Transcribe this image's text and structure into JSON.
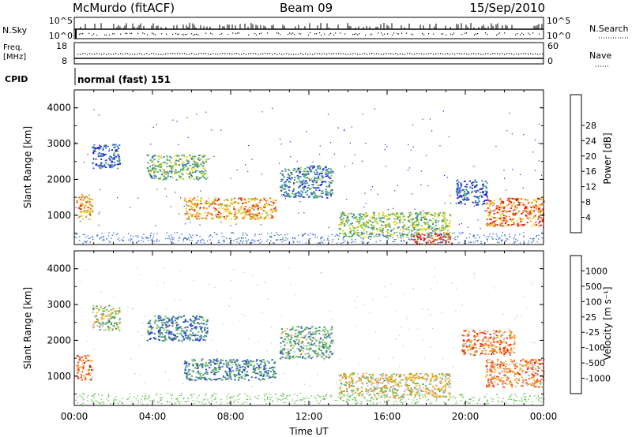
{
  "header": {
    "station": "McMurdo (fitACF)",
    "beam": "Beam 09",
    "date": "15/Sep/2010"
  },
  "params": {
    "nsky_label": "N.Sky",
    "nsky_top": "10^5",
    "nsky_bot": "10^0",
    "nsearch_label": "N.Search",
    "nsearch_top": "10^5",
    "nsearch_bot": "10^0",
    "freq_label_1": "Freq.",
    "freq_label_2": "[MHz]",
    "freq_top": "18",
    "freq_bot": "8",
    "nave_label": "Nave",
    "nave_top": "60",
    "nave_bot": "0",
    "cpid_label": "CPID",
    "cpid_value": "normal (fast) 151"
  },
  "chart_data": [
    {
      "type": "heatmap",
      "variable": "Power",
      "ylabel": "Slant Range [km]",
      "xlabel": "",
      "ylim": [
        180,
        4500
      ],
      "xlim_hours": [
        0,
        24
      ],
      "y_ticks": [
        "1000",
        "2000",
        "3000",
        "4000"
      ],
      "colorbar_label": "Power [dB]",
      "colorbar_ticks": [
        "4",
        "8",
        "12",
        "16",
        "20",
        "24",
        "28"
      ],
      "colorbar_colors": [
        "#1f1fe0",
        "#2f6ad0",
        "#3f8f86",
        "#4cab6a",
        "#9ed13a",
        "#f2d21b",
        "#f59a16",
        "#f2581a",
        "#e01212"
      ],
      "echo_regions": [
        {
          "t0": 0.1,
          "t1": 0.9,
          "r0": 900,
          "r1": 1600,
          "level": 0.7
        },
        {
          "t0": 0.9,
          "t1": 2.3,
          "r0": 2300,
          "r1": 3000,
          "level": 0.15
        },
        {
          "t0": 3.7,
          "t1": 6.8,
          "r0": 2000,
          "r1": 2700,
          "level": 0.4
        },
        {
          "t0": 5.6,
          "t1": 10.3,
          "r0": 900,
          "r1": 1500,
          "level": 0.7
        },
        {
          "t0": 10.5,
          "t1": 13.2,
          "r0": 1500,
          "r1": 2400,
          "level": 0.25
        },
        {
          "t0": 13.5,
          "t1": 19.2,
          "r0": 400,
          "r1": 1100,
          "level": 0.45
        },
        {
          "t0": 17.3,
          "t1": 19.3,
          "r0": 200,
          "r1": 500,
          "level": 0.9
        },
        {
          "t0": 19.5,
          "t1": 21.1,
          "r0": 1300,
          "r1": 2000,
          "level": 0.15
        },
        {
          "t0": 21.0,
          "t1": 24.0,
          "r0": 700,
          "r1": 1500,
          "level": 0.8
        }
      ]
    },
    {
      "type": "heatmap",
      "variable": "Velocity",
      "ylabel": "Slant Range [km]",
      "xlabel": "Time UT",
      "ylim": [
        180,
        4500
      ],
      "xlim_hours": [
        0,
        24
      ],
      "x_ticks": [
        "00:00",
        "04:00",
        "08:00",
        "12:00",
        "16:00",
        "20:00",
        "00:00"
      ],
      "y_ticks": [
        "1000",
        "2000",
        "3000",
        "4000"
      ],
      "colorbar_label": "Velocity [m s⁻¹]",
      "colorbar_ticks": [
        "1000",
        "500",
        "100",
        "25",
        "-25",
        "-100",
        "-500",
        "-1000"
      ],
      "colorbar_colors": [
        "#1f3fd0",
        "#3a6aa8",
        "#3f8f6a",
        "#5fbf4a",
        "#c0c0c0",
        "#f5b020",
        "#f58a1a",
        "#f24e1a",
        "#e01212"
      ],
      "echo_regions": [
        {
          "t0": 0.1,
          "t1": 0.9,
          "r0": 900,
          "r1": 1600,
          "level": 0.75
        },
        {
          "t0": 0.9,
          "t1": 2.3,
          "r0": 2300,
          "r1": 3000,
          "level": 0.45
        },
        {
          "t0": 3.7,
          "t1": 6.8,
          "r0": 2000,
          "r1": 2700,
          "level": 0.2
        },
        {
          "t0": 5.6,
          "t1": 10.3,
          "r0": 900,
          "r1": 1500,
          "level": 0.25
        },
        {
          "t0": 10.5,
          "t1": 13.2,
          "r0": 1500,
          "r1": 2400,
          "level": 0.35
        },
        {
          "t0": 13.5,
          "t1": 19.2,
          "r0": 400,
          "r1": 1100,
          "level": 0.55
        },
        {
          "t0": 19.8,
          "t1": 22.5,
          "r0": 1600,
          "r1": 2300,
          "level": 0.75
        },
        {
          "t0": 21.0,
          "t1": 24.0,
          "r0": 700,
          "r1": 1500,
          "level": 0.7
        }
      ]
    }
  ]
}
